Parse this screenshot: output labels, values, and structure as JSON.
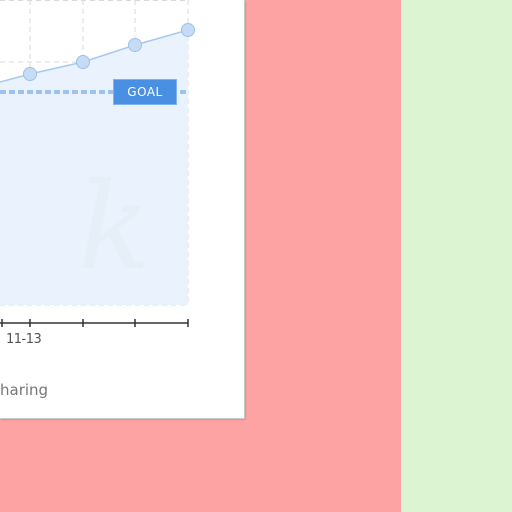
{
  "card": {
    "footer_text": "haring"
  },
  "chart_data": {
    "type": "area",
    "x_visible_tick_label": "11-13",
    "goal_label": "GOAL",
    "series_points_visible": 4,
    "colors": {
      "line": "#a9c8ef",
      "area": "#eaf3fd",
      "goal": "#9dc2ee",
      "goal_badge": "#4a90e2"
    }
  },
  "panels": {
    "left_bg": "#fea3a3",
    "right_bg": "#dcf4d2"
  }
}
